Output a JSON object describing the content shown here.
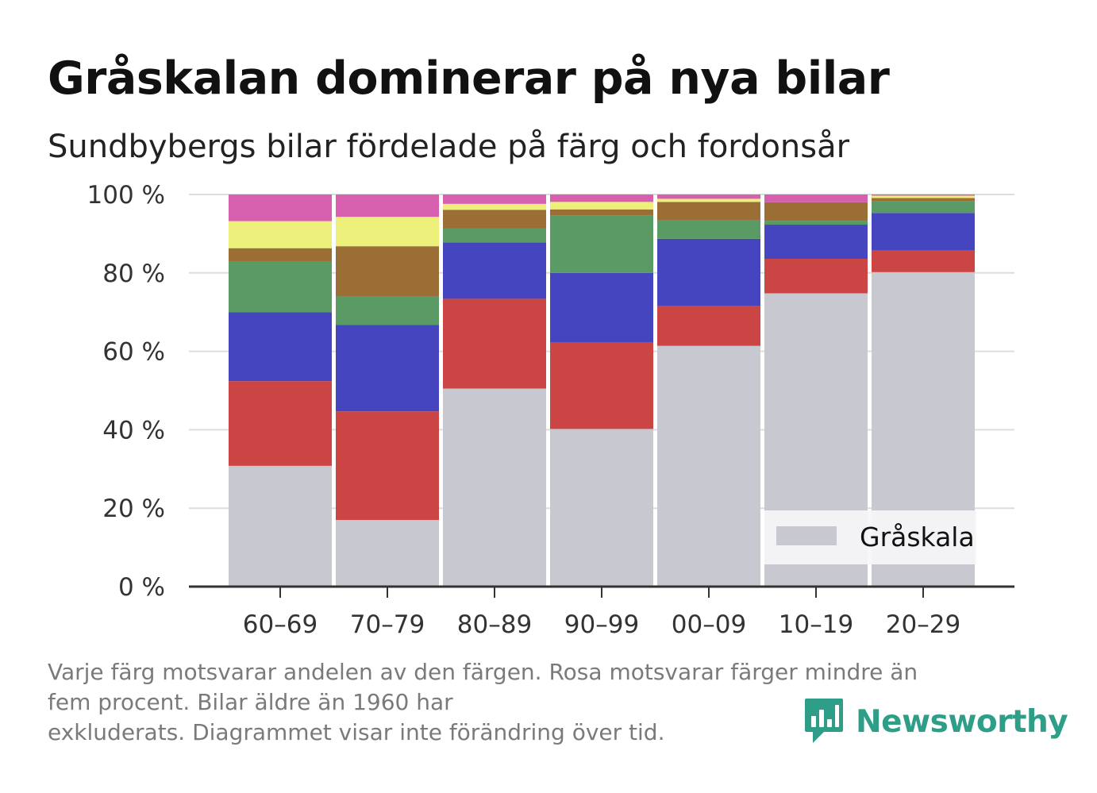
{
  "header": {
    "title": "Gråskalan dominerar på nya bilar",
    "subtitle": "Sundbybergs bilar fördelade på färg och fordonsår"
  },
  "chart_data": {
    "type": "bar",
    "stacked": true,
    "orientation": "vertical",
    "categories": [
      "60–69",
      "70–79",
      "80–89",
      "90–99",
      "00–09",
      "10–19",
      "20–29"
    ],
    "y_ticks": [
      "0 %",
      "20 %",
      "40 %",
      "60 %",
      "80 %",
      "100 %"
    ],
    "ylim": [
      0,
      100
    ],
    "grid": true,
    "series": [
      {
        "name": "Gråskala",
        "color": "#c8c8d0",
        "values": [
          30.8,
          17.0,
          50.5,
          40.2,
          61.4,
          74.8,
          80.2
        ]
      },
      {
        "color": "#cb4545",
        "values": [
          21.6,
          27.7,
          22.9,
          22.0,
          10.1,
          8.8,
          5.5
        ]
      },
      {
        "color": "#4545c0",
        "values": [
          17.6,
          22.0,
          14.4,
          17.8,
          17.2,
          8.7,
          9.6
        ]
      },
      {
        "color": "#5a9a64",
        "values": [
          13.0,
          7.3,
          3.6,
          14.6,
          4.7,
          1.0,
          3.0
        ]
      },
      {
        "color": "#9a6e34",
        "values": [
          3.3,
          12.8,
          4.7,
          1.6,
          4.7,
          4.7,
          0.8
        ]
      },
      {
        "color": "#ecf07a",
        "values": [
          6.9,
          7.5,
          1.5,
          1.9,
          0.8,
          0.0,
          0.6
        ]
      },
      {
        "color": "#d660ae",
        "values": [
          6.8,
          5.7,
          2.4,
          1.9,
          1.1,
          2.0,
          0.3
        ]
      }
    ],
    "legend": {
      "position": "bottom-right",
      "entries": [
        "Gråskala"
      ]
    }
  },
  "footer": {
    "note_lines": [
      "Varje färg motsvarar andelen av den färgen. Rosa motsvarar färger mindre än",
      "fem procent. Bilar äldre än 1960 har",
      "exkluderats. Diagrammet visar inte förändring över tid."
    ],
    "brand": "Newsworthy",
    "brand_icon": "newsworthy-logo-icon",
    "brand_color": "#2e9e88"
  }
}
